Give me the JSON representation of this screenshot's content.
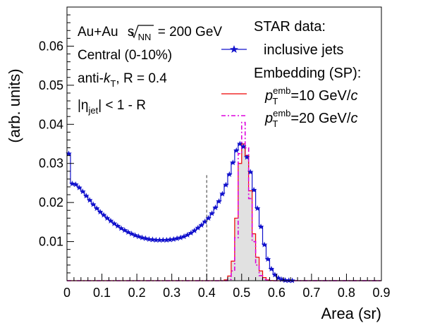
{
  "chart_data": {
    "type": "line",
    "title": "",
    "xlabel": "Area (sr)",
    "ylabel": "(arb. units)",
    "xlim": [
      0,
      0.9
    ],
    "ylim": [
      0,
      0.07
    ],
    "x_ticks": [
      0,
      0.1,
      0.2,
      0.3,
      0.4,
      0.5,
      0.6,
      0.7,
      0.8,
      0.9
    ],
    "y_ticks": [
      0.01,
      0.02,
      0.03,
      0.04,
      0.05,
      0.06
    ],
    "grid": false,
    "legend_placement": "top-right",
    "annotations": {
      "collision": "Au+Au",
      "sqrt": "s",
      "sqrt_sub": "NN",
      "energy": "= 200 GeV",
      "centrality": "Central (0-10%)",
      "algo_pre": "anti-",
      "algo_k": "k",
      "algo_sub": "T",
      "algo_post": ", R = 0.4",
      "eta_pre": "|η",
      "eta_sub": "jet",
      "eta_post": "| < 1 - R"
    },
    "legend": {
      "header_data": "STAR data:",
      "inclusive": "inclusive jets",
      "header_embed": "Embedding (SP):",
      "p": "p",
      "sub": "T",
      "sup": "emb",
      "val10": "=10 GeV/",
      "val20": "=20 GeV/",
      "c": "c"
    },
    "bin_width": 0.01,
    "series": [
      {
        "name": "inclusive jets",
        "color": "#1010cc",
        "values": [
          0.0325,
          0.0248,
          0.0246,
          0.0238,
          0.0228,
          0.0217,
          0.0206,
          0.0195,
          0.0185,
          0.0176,
          0.0168,
          0.016,
          0.0153,
          0.0146,
          0.014,
          0.0134,
          0.0129,
          0.0124,
          0.012,
          0.0116,
          0.0113,
          0.011,
          0.0108,
          0.0106,
          0.0105,
          0.0104,
          0.0104,
          0.0104,
          0.0104,
          0.0105,
          0.0106,
          0.0108,
          0.011,
          0.0113,
          0.0117,
          0.0122,
          0.0128,
          0.0135,
          0.0142,
          0.0151,
          0.016,
          0.0172,
          0.0187,
          0.0203,
          0.0222,
          0.0245,
          0.0272,
          0.0302,
          0.0333,
          0.035,
          0.0343,
          0.0316,
          0.0278,
          0.0232,
          0.0185,
          0.0138,
          0.0092,
          0.0055,
          0.003,
          0.0015,
          0.0007,
          0.0003,
          0.0001,
          5e-05,
          2e-05,
          1e-05,
          0.0,
          0,
          0,
          0,
          0,
          0,
          0,
          0,
          0,
          0,
          0,
          0,
          0,
          0,
          0,
          0,
          0,
          0,
          0,
          0,
          0,
          0,
          0,
          0
        ]
      },
      {
        "name": "p_T^emb=10 GeV/c",
        "color": "#ee0000",
        "values": [
          0,
          0,
          0,
          0,
          0,
          0,
          0,
          0,
          0,
          0,
          0,
          0,
          0,
          0,
          0,
          0,
          0,
          0,
          0,
          0,
          0,
          0,
          0,
          0,
          0,
          0,
          0,
          0,
          0,
          0,
          0,
          0,
          0,
          0,
          0,
          0,
          0,
          0,
          0,
          0,
          0,
          0,
          0,
          0,
          0,
          0.0002,
          0.0012,
          0.005,
          0.016,
          0.03,
          0.035,
          0.032,
          0.023,
          0.012,
          0.006,
          0.0025,
          0.0008,
          0.0002,
          5e-05,
          0,
          0,
          0,
          0,
          0,
          0,
          0,
          0,
          0,
          0,
          0,
          0,
          0,
          0,
          0,
          0,
          0,
          0,
          0,
          0,
          0,
          0,
          0,
          0,
          0,
          0,
          0,
          0,
          0,
          0,
          0
        ]
      },
      {
        "name": "p_T^emb=20 GeV/c",
        "color": "#dd00dd",
        "values": [
          0,
          0,
          0,
          0,
          0,
          0,
          0,
          0,
          0,
          0,
          0,
          0,
          0,
          0,
          0,
          0,
          0,
          0,
          0,
          0,
          0,
          0,
          0,
          0,
          0,
          0,
          0,
          0,
          0,
          0,
          0,
          0,
          0,
          0,
          0,
          0,
          0,
          0,
          0,
          0,
          0,
          0,
          0,
          0,
          0,
          0,
          0.0003,
          0.0025,
          0.011,
          0.0325,
          0.0405,
          0.034,
          0.021,
          0.01,
          0.004,
          0.0013,
          0.0003,
          0.0001,
          0,
          0,
          0,
          0,
          0,
          0,
          0,
          0,
          0,
          0,
          0,
          0,
          0,
          0,
          0,
          0,
          0,
          0,
          0,
          0,
          0,
          0,
          0,
          0,
          0,
          0,
          0,
          0,
          0,
          0,
          0,
          0
        ]
      }
    ],
    "cut_line": {
      "x": 0.4,
      "y_top": 0.027
    }
  }
}
